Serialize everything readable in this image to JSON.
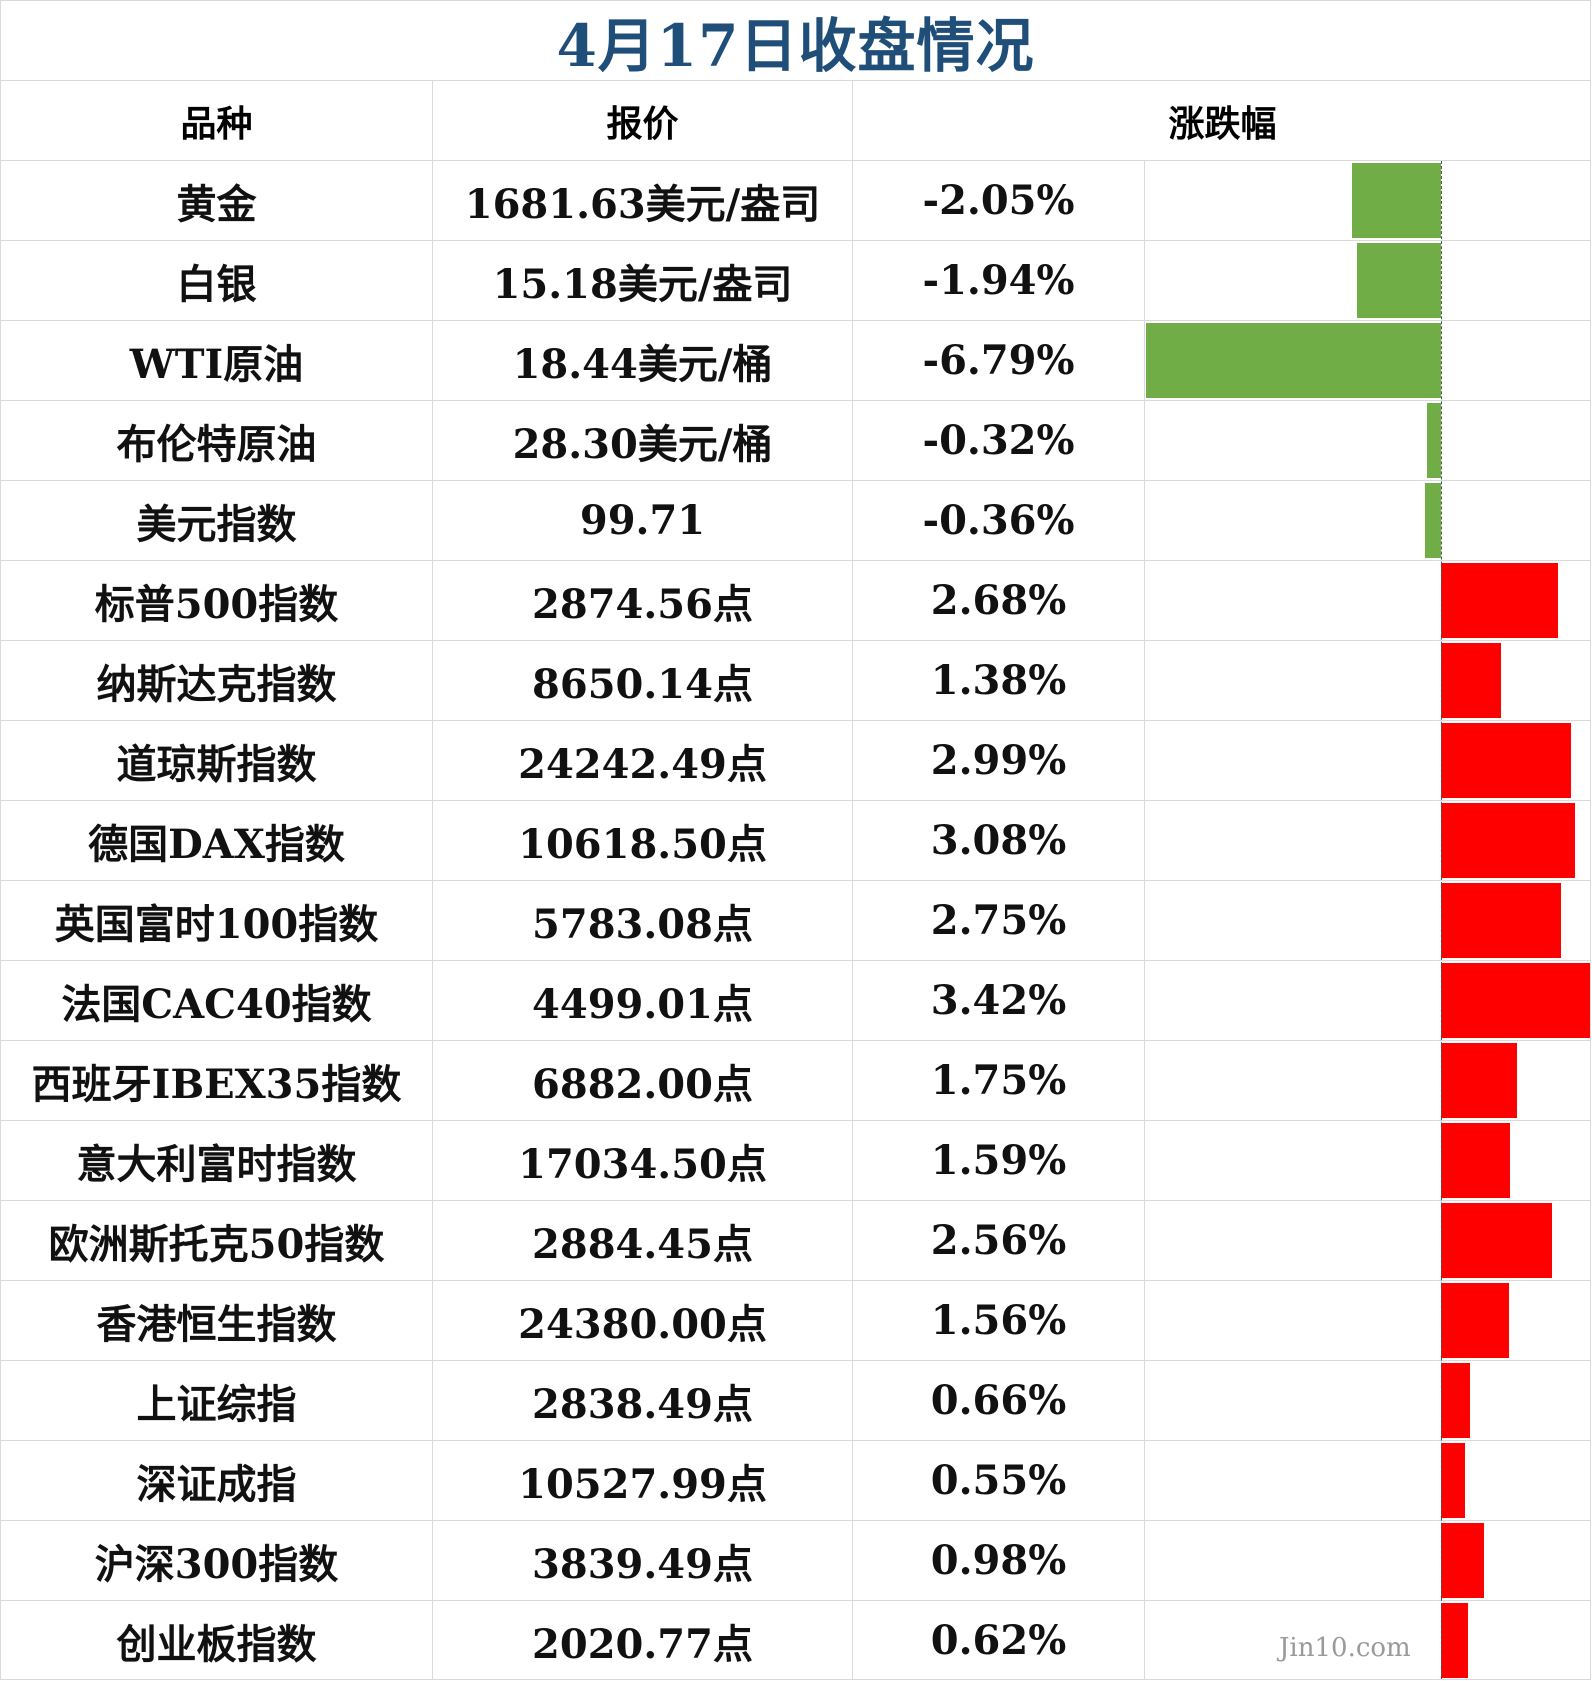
{
  "title": "4月17日收盘情况",
  "headers": {
    "name": "品种",
    "price": "报价",
    "change": "涨跌幅"
  },
  "watermark": "Jin10.com",
  "colors": {
    "negative": "#70ad47",
    "positive": "#ff0000",
    "title": "#1f4e79"
  },
  "chart_data": {
    "type": "table",
    "columns": [
      "品种",
      "报价",
      "涨跌幅"
    ],
    "rows": [
      {
        "name": "黄金",
        "price": "1681.63美元/盎司",
        "pct_label": "-2.05%",
        "pct": -2.05
      },
      {
        "name": "白银",
        "price": "15.18美元/盎司",
        "pct_label": "-1.94%",
        "pct": -1.94
      },
      {
        "name": "WTI原油",
        "price": "18.44美元/桶",
        "pct_label": "-6.79%",
        "pct": -6.79
      },
      {
        "name": "布伦特原油",
        "price": "28.30美元/桶",
        "pct_label": "-0.32%",
        "pct": -0.32
      },
      {
        "name": "美元指数",
        "price": "99.71",
        "pct_label": "-0.36%",
        "pct": -0.36
      },
      {
        "name": "标普500指数",
        "price": "2874.56点",
        "pct_label": "2.68%",
        "pct": 2.68
      },
      {
        "name": "纳斯达克指数",
        "price": "8650.14点",
        "pct_label": "1.38%",
        "pct": 1.38
      },
      {
        "name": "道琼斯指数",
        "price": "24242.49点",
        "pct_label": "2.99%",
        "pct": 2.99
      },
      {
        "name": "德国DAX指数",
        "price": "10618.50点",
        "pct_label": "3.08%",
        "pct": 3.08
      },
      {
        "name": "英国富时100指数",
        "price": "5783.08点",
        "pct_label": "2.75%",
        "pct": 2.75
      },
      {
        "name": "法国CAC40指数",
        "price": "4499.01点",
        "pct_label": "3.42%",
        "pct": 3.42
      },
      {
        "name": "西班牙IBEX35指数",
        "price": "6882.00点",
        "pct_label": "1.75%",
        "pct": 1.75
      },
      {
        "name": "意大利富时指数",
        "price": "17034.50点",
        "pct_label": "1.59%",
        "pct": 1.59
      },
      {
        "name": "欧洲斯托克50指数",
        "price": "2884.45点",
        "pct_label": "2.56%",
        "pct": 2.56
      },
      {
        "name": "香港恒生指数",
        "price": "24380.00点",
        "pct_label": "1.56%",
        "pct": 1.56
      },
      {
        "name": "上证综指",
        "price": "2838.49点",
        "pct_label": "0.66%",
        "pct": 0.66
      },
      {
        "name": "深证成指",
        "price": "10527.99点",
        "pct_label": "0.55%",
        "pct": 0.55
      },
      {
        "name": "沪深300指数",
        "price": "3839.49点",
        "pct_label": "0.98%",
        "pct": 0.98
      },
      {
        "name": "创业板指数",
        "price": "2020.77点",
        "pct_label": "0.62%",
        "pct": 0.62
      }
    ]
  }
}
